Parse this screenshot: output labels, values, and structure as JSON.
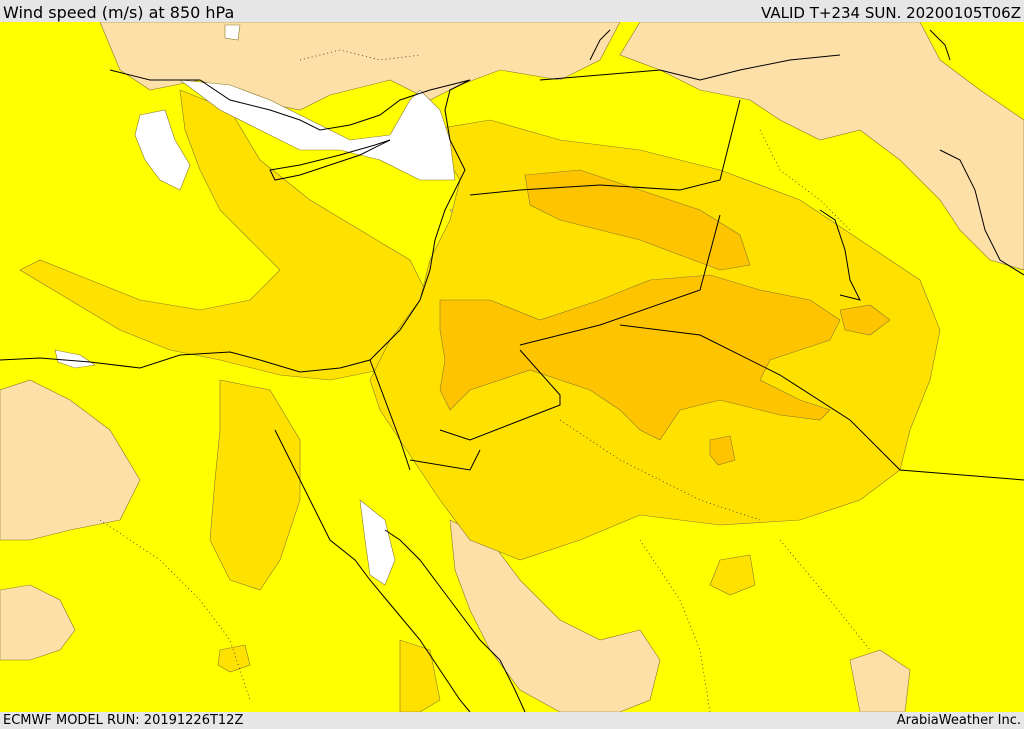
{
  "header": {
    "title": "Wind speed (m/s) at 850 hPa",
    "valid_time": "VALID T+234 SUN. 20200105T06Z"
  },
  "footer": {
    "model_run": "ECMWF MODEL RUN: 20191226T12Z",
    "provider": "ArabiaWeather Inc."
  },
  "legend_colors": {
    "calm": "#ffffff",
    "light": "#ffff00",
    "moderate": "#ffe100",
    "fresh": "#ffc400",
    "strong": "#ffb000",
    "land_low": "#fde0a8"
  }
}
